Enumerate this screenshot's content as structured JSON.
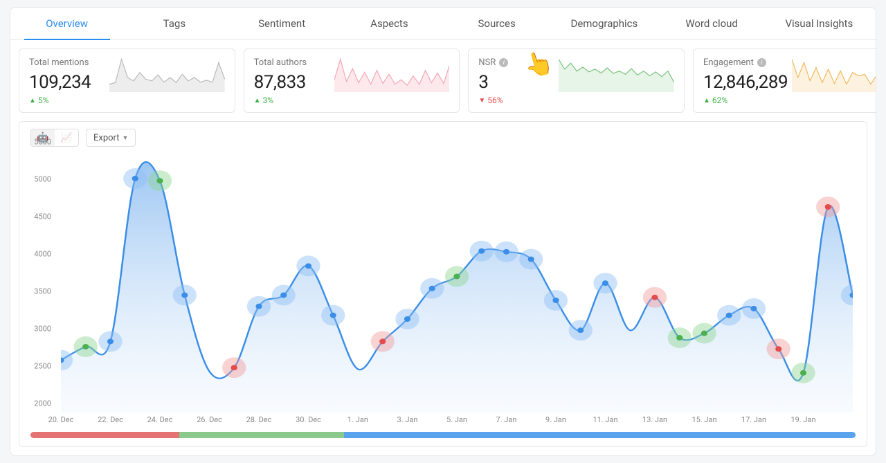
{
  "tabs": {
    "items": [
      "Overview",
      "Tags",
      "Sentiment",
      "Aspects",
      "Sources",
      "Demographics",
      "Word cloud",
      "Visual Insights"
    ],
    "active_index": 0
  },
  "kpis": [
    {
      "title": "Total mentions",
      "value": "109,234",
      "delta_pct": "5%",
      "delta_dir": "up",
      "spark": {
        "color": "#b8b8b8",
        "fill": "#ededed",
        "values": [
          20,
          25,
          95,
          40,
          30,
          55,
          35,
          30,
          48,
          26,
          40,
          25,
          50,
          30,
          40,
          26,
          32,
          26,
          85,
          35
        ]
      }
    },
    {
      "title": "Total authors",
      "value": "87,833",
      "delta_pct": "3%",
      "delta_dir": "up",
      "spark": {
        "color": "#f3a6b4",
        "fill": "#fde9ec",
        "values": [
          30,
          85,
          25,
          60,
          22,
          50,
          18,
          55,
          20,
          45,
          18,
          30,
          15,
          40,
          18,
          55,
          22,
          48,
          20,
          70
        ]
      }
    },
    {
      "title": "NSR",
      "info": true,
      "value": "3",
      "delta_pct": "56%",
      "delta_dir": "down",
      "hand": true,
      "spark": {
        "color": "#78c27a",
        "fill": "#e7f4e8",
        "values": [
          80,
          55,
          70,
          50,
          60,
          48,
          55,
          45,
          58,
          44,
          50,
          42,
          56,
          40,
          50,
          38,
          48,
          36,
          50,
          22
        ]
      }
    },
    {
      "title": "Engagement",
      "info": true,
      "value": "12,846,289",
      "delta_pct": "62%",
      "delta_dir": "up",
      "spark": {
        "color": "#f0b85a",
        "fill": "#fdf2e0",
        "values": [
          95,
          40,
          85,
          30,
          70,
          25,
          65,
          22,
          60,
          20,
          55,
          45,
          50,
          20,
          48,
          18,
          42,
          16,
          40,
          26
        ]
      }
    }
  ],
  "toolbar": {
    "export_label": "Export",
    "robot_glyph": "🤖",
    "wave_glyph": "📈"
  },
  "chart": {
    "type": "area",
    "ylim": [
      2000,
      5500
    ],
    "ytick_step": 500,
    "x_labels": [
      "20. Dec",
      "22. Dec",
      "24. Dec",
      "26. Dec",
      "28. Dec",
      "30. Dec",
      "1. Jan",
      "3. Jan",
      "5. Jan",
      "7. Jan",
      "9. Jan",
      "11. Jan",
      "13. Jan",
      "15. Jan",
      "17. Jan",
      "19. Jan"
    ],
    "x_tick_every": 2,
    "values": [
      2700,
      2880,
      2950,
      5130,
      5100,
      3570,
      2550,
      2600,
      3420,
      3570,
      3960,
      3300,
      2580,
      2950,
      3250,
      3660,
      3820,
      4160,
      4150,
      4050,
      3500,
      3100,
      3730,
      3100,
      3540,
      3000,
      3060,
      3300,
      3390,
      2850,
      2530,
      4750,
      3570
    ],
    "halos": [
      {
        "i": 0,
        "c": "blue"
      },
      {
        "i": 1,
        "c": "green"
      },
      {
        "i": 2,
        "c": "blue"
      },
      {
        "i": 3,
        "c": "blue"
      },
      {
        "i": 4,
        "c": "green"
      },
      {
        "i": 5,
        "c": "blue"
      },
      {
        "i": 7,
        "c": "red"
      },
      {
        "i": 8,
        "c": "blue"
      },
      {
        "i": 9,
        "c": "blue"
      },
      {
        "i": 10,
        "c": "blue"
      },
      {
        "i": 11,
        "c": "blue"
      },
      {
        "i": 13,
        "c": "red"
      },
      {
        "i": 14,
        "c": "blue"
      },
      {
        "i": 15,
        "c": "blue"
      },
      {
        "i": 16,
        "c": "green"
      },
      {
        "i": 17,
        "c": "blue"
      },
      {
        "i": 18,
        "c": "blue"
      },
      {
        "i": 19,
        "c": "blue"
      },
      {
        "i": 20,
        "c": "blue"
      },
      {
        "i": 21,
        "c": "blue"
      },
      {
        "i": 22,
        "c": "blue"
      },
      {
        "i": 24,
        "c": "red"
      },
      {
        "i": 25,
        "c": "green"
      },
      {
        "i": 26,
        "c": "green"
      },
      {
        "i": 27,
        "c": "blue"
      },
      {
        "i": 28,
        "c": "blue"
      },
      {
        "i": 29,
        "c": "red"
      },
      {
        "i": 30,
        "c": "green"
      },
      {
        "i": 31,
        "c": "red"
      },
      {
        "i": 32,
        "c": "blue"
      }
    ],
    "halo_colors": {
      "blue": "#8fbef5",
      "green": "#8fd492",
      "red": "#f29b9b"
    },
    "line_color": "#3b8ee8",
    "fill_top": "#7db4ef",
    "fill_bottom": "#e9f2fc",
    "point_fill": "#3b8ee8",
    "grid_color": "#f0f0f0",
    "label_fontsize": 11
  },
  "segbar": {
    "segments": [
      {
        "color": "#e57373",
        "pct": 18
      },
      {
        "color": "#8bc98d",
        "pct": 20
      },
      {
        "color": "#5aa3ef",
        "pct": 62
      }
    ]
  }
}
